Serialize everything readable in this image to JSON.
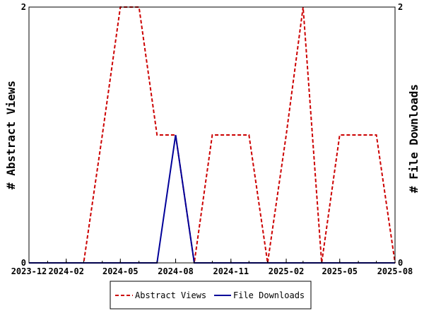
{
  "chart_data": {
    "type": "line",
    "title": "",
    "xlabel": "",
    "ylabel_left": "# Abstract Views",
    "ylabel_right": "# File Downloads",
    "x_ticks": [
      "2023-12",
      "2024-02",
      "2024-05",
      "2024-08",
      "2024-11",
      "2025-02",
      "2025-05",
      "2025-08"
    ],
    "x_range": [
      "2023-12-01",
      "2025-08-01"
    ],
    "ylim_left": [
      0,
      2
    ],
    "ylim_right": [
      0,
      2
    ],
    "y_ticks_left": [
      "0",
      "2"
    ],
    "y_ticks_right": [
      "0",
      "2"
    ],
    "grid": false,
    "legend_position": "bottom-center",
    "series": [
      {
        "name": "Abstract Views",
        "axis": "left",
        "color": "#cc0000",
        "dash": "dashed",
        "points": [
          {
            "x": "2023-12-01",
            "y": 0
          },
          {
            "x": "2024-01-01",
            "y": 0
          },
          {
            "x": "2024-02-01",
            "y": 0
          },
          {
            "x": "2024-03-01",
            "y": 0
          },
          {
            "x": "2024-04-01",
            "y": 1
          },
          {
            "x": "2024-05-01",
            "y": 2
          },
          {
            "x": "2024-06-01",
            "y": 2
          },
          {
            "x": "2024-07-01",
            "y": 1
          },
          {
            "x": "2024-08-01",
            "y": 1
          },
          {
            "x": "2024-09-01",
            "y": 0
          },
          {
            "x": "2024-10-01",
            "y": 1
          },
          {
            "x": "2024-11-01",
            "y": 1
          },
          {
            "x": "2024-12-01",
            "y": 1
          },
          {
            "x": "2025-01-01",
            "y": 0
          },
          {
            "x": "2025-02-01",
            "y": 1
          },
          {
            "x": "2025-03-01",
            "y": 2
          },
          {
            "x": "2025-04-01",
            "y": 0
          },
          {
            "x": "2025-05-01",
            "y": 1
          },
          {
            "x": "2025-06-01",
            "y": 1
          },
          {
            "x": "2025-07-01",
            "y": 1
          },
          {
            "x": "2025-08-01",
            "y": 0
          }
        ]
      },
      {
        "name": "File Downloads",
        "axis": "right",
        "color": "#000099",
        "dash": "solid",
        "points": [
          {
            "x": "2023-12-01",
            "y": 0
          },
          {
            "x": "2024-01-01",
            "y": 0
          },
          {
            "x": "2024-02-01",
            "y": 0
          },
          {
            "x": "2024-03-01",
            "y": 0
          },
          {
            "x": "2024-04-01",
            "y": 0
          },
          {
            "x": "2024-05-01",
            "y": 0
          },
          {
            "x": "2024-06-01",
            "y": 0
          },
          {
            "x": "2024-07-01",
            "y": 0
          },
          {
            "x": "2024-08-01",
            "y": 1
          },
          {
            "x": "2024-09-01",
            "y": 0
          },
          {
            "x": "2024-10-01",
            "y": 0
          },
          {
            "x": "2024-11-01",
            "y": 0
          },
          {
            "x": "2024-12-01",
            "y": 0
          },
          {
            "x": "2025-01-01",
            "y": 0
          },
          {
            "x": "2025-02-01",
            "y": 0
          },
          {
            "x": "2025-03-01",
            "y": 0
          },
          {
            "x": "2025-04-01",
            "y": 0
          },
          {
            "x": "2025-05-01",
            "y": 0
          },
          {
            "x": "2025-06-01",
            "y": 0
          },
          {
            "x": "2025-07-01",
            "y": 0
          },
          {
            "x": "2025-08-01",
            "y": 0
          }
        ]
      }
    ]
  }
}
